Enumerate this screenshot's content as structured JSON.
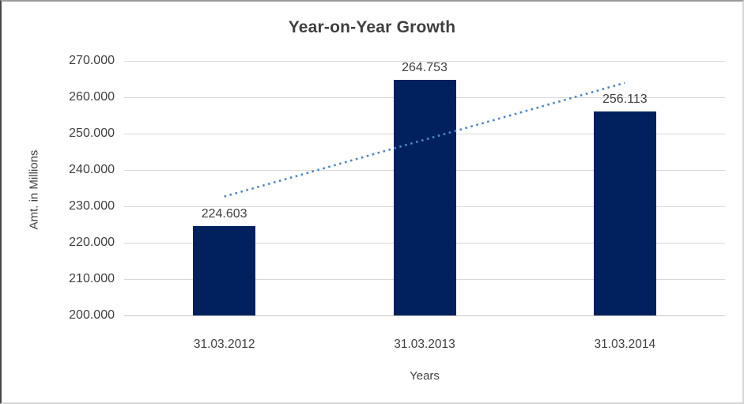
{
  "chart_data": {
    "type": "bar",
    "title": "Year-on-Year Growth",
    "xlabel": "Years",
    "ylabel": "Amt. in Millions",
    "categories": [
      "31.03.2012",
      "31.03.2013",
      "31.03.2014"
    ],
    "values": [
      224603,
      264753,
      256113
    ],
    "value_labels": [
      "224.603",
      "264.753",
      "256.113"
    ],
    "ylim": [
      200000,
      270000
    ],
    "ytick_step": 10000,
    "ytick_labels": [
      "200.000",
      "210.000",
      "220.000",
      "230.000",
      "240.000",
      "250.000",
      "260.000",
      "270.000"
    ],
    "grid": true,
    "legend": "none",
    "series": [
      {
        "name": "amount",
        "kind": "bar",
        "values": [
          224603,
          264753,
          256113
        ]
      },
      {
        "name": "linear-trendline",
        "kind": "dotted-line",
        "from_category_index": 0,
        "to_category_index": 2,
        "start_value": 232700,
        "end_value": 263950
      }
    ],
    "colors": {
      "bar": "#01215e",
      "trendline": "#4e86c6",
      "gridline": "#d9d9d9",
      "axis_line": "#c6c6c6",
      "text": "#404040",
      "title_text": "#3f3f3f",
      "background": "#ffffff"
    }
  }
}
